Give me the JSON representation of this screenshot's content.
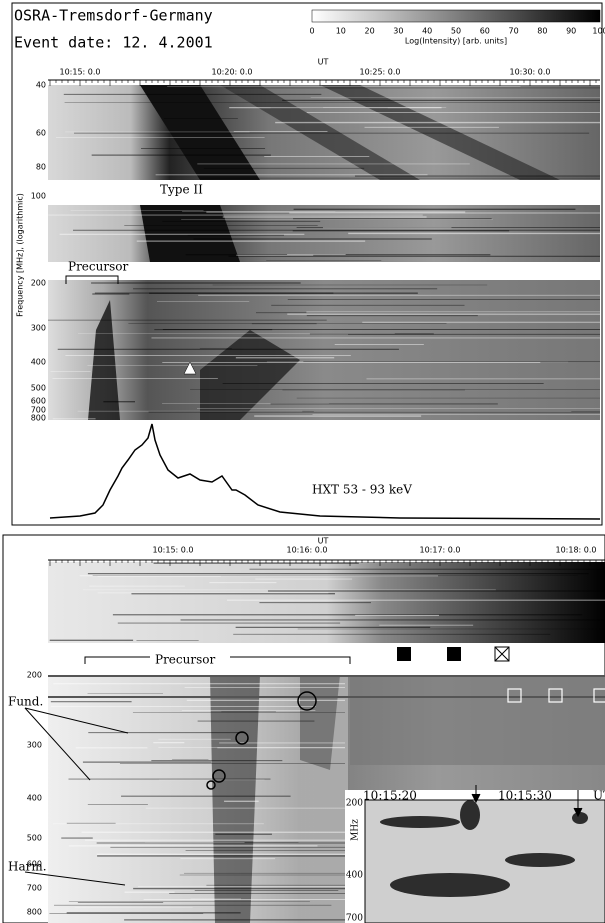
{
  "panel_top": {
    "station": "OSRA-Tremsdorf-Germany",
    "event_date": "Event date: 12. 4.2001",
    "colorbar": {
      "ticks": [
        "0",
        "10",
        "20",
        "30",
        "40",
        "50",
        "60",
        "70",
        "80",
        "90",
        "100"
      ],
      "label": "Log(Intensity) [arb. units]"
    },
    "time_axis": {
      "label": "UT",
      "ticks": [
        "10:15: 0.0",
        "10:20: 0.0",
        "10:25: 0.0",
        "10:30: 0.0"
      ]
    },
    "freq_axis": {
      "label": "Frequency [MHz], (logarithmic)",
      "ticks": [
        "40",
        "60",
        "80",
        "100",
        "200",
        "300",
        "400",
        "500",
        "600",
        "700",
        "800"
      ]
    },
    "annotations": {
      "type_ii": "Type II",
      "precursor": "Precursor",
      "hxt": "HXT  53 - 93 keV"
    }
  },
  "panel_bottom": {
    "time_axis": {
      "label": "UT",
      "ticks": [
        "10:15: 0.0",
        "10:16: 0.0",
        "10:17: 0.0",
        "10:18: 0.0"
      ]
    },
    "freq_axis": {
      "ticks": [
        "200",
        "300",
        "400",
        "500",
        "600",
        "700",
        "800"
      ]
    },
    "annotations": {
      "precursor": "Precursor",
      "fund": "Fund.",
      "harm": "Harm."
    },
    "inset": {
      "time_ticks": [
        "10:15:20",
        "10:15:30"
      ],
      "time_label": "UT",
      "freq_label": "MHz",
      "freq_ticks": [
        "200",
        "400",
        "700"
      ]
    }
  }
}
